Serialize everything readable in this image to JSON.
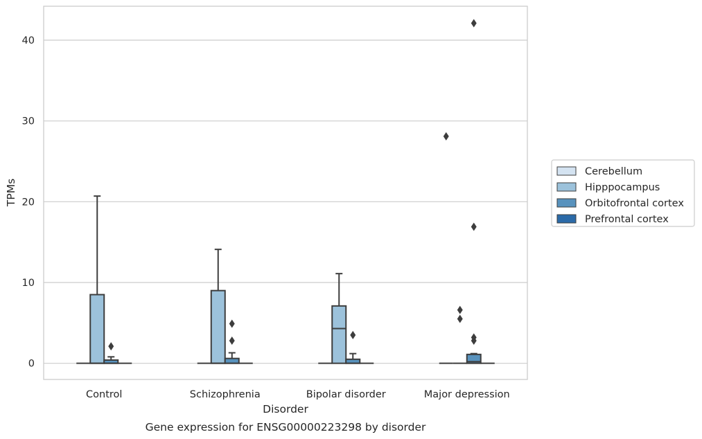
{
  "chart_data": {
    "type": "box",
    "title": "Gene expression for ENSG00000223298 by disorder",
    "xlabel": "Disorder",
    "ylabel": "TPMs",
    "ylim": [
      -2,
      44.2
    ],
    "yticks": [
      0,
      10,
      20,
      30,
      40
    ],
    "grid": "horizontal",
    "legend_position": "right",
    "categories": [
      "Control",
      "Schizophrenia",
      "Bipolar disorder",
      "Major depression"
    ],
    "series": [
      {
        "name": "Cerebellum",
        "color": "#d4e3f1",
        "boxes": [
          {
            "whislo": 0,
            "q1": 0,
            "med": 0,
            "q3": 0,
            "whishi": 0,
            "fliers": []
          },
          {
            "whislo": 0,
            "q1": 0,
            "med": 0,
            "q3": 0,
            "whishi": 0,
            "fliers": []
          },
          {
            "whislo": 0,
            "q1": 0,
            "med": 0,
            "q3": 0,
            "whishi": 0,
            "fliers": []
          },
          {
            "whislo": 0,
            "q1": 0,
            "med": 0,
            "q3": 0,
            "whishi": 0,
            "fliers": [
              28.1
            ]
          }
        ]
      },
      {
        "name": "Hipppocampus",
        "color": "#9cc2db",
        "boxes": [
          {
            "whislo": 0,
            "q1": 0,
            "med": 0,
            "q3": 8.5,
            "whishi": 20.7,
            "fliers": []
          },
          {
            "whislo": 0,
            "q1": 0,
            "med": 0,
            "q3": 9.0,
            "whishi": 14.1,
            "fliers": []
          },
          {
            "whislo": 0,
            "q1": 0,
            "med": 4.3,
            "q3": 7.1,
            "whishi": 11.1,
            "fliers": []
          },
          {
            "whislo": 0,
            "q1": 0,
            "med": 0,
            "q3": 0,
            "whishi": 0,
            "fliers": [
              6.6,
              5.5
            ]
          }
        ]
      },
      {
        "name": "Orbitofrontal cortex",
        "color": "#5892bd",
        "boxes": [
          {
            "whislo": 0,
            "q1": 0,
            "med": 0,
            "q3": 0.4,
            "whishi": 0.8,
            "fliers": [
              2.1
            ]
          },
          {
            "whislo": 0,
            "q1": 0,
            "med": 0,
            "q3": 0.6,
            "whishi": 1.3,
            "fliers": [
              4.9,
              2.8
            ]
          },
          {
            "whislo": 0,
            "q1": 0,
            "med": 0,
            "q3": 0.5,
            "whishi": 1.2,
            "fliers": [
              3.5
            ]
          },
          {
            "whislo": 0,
            "q1": 0,
            "med": 0.2,
            "q3": 1.1,
            "whishi": 1.2,
            "fliers": [
              42.1,
              16.9,
              3.2,
              2.8
            ]
          }
        ]
      },
      {
        "name": "Prefrontal cortex",
        "color": "#2b6aa8",
        "boxes": [
          {
            "whislo": 0,
            "q1": 0,
            "med": 0,
            "q3": 0,
            "whishi": 0,
            "fliers": []
          },
          {
            "whislo": 0,
            "q1": 0,
            "med": 0,
            "q3": 0,
            "whishi": 0,
            "fliers": []
          },
          {
            "whislo": 0,
            "q1": 0,
            "med": 0,
            "q3": 0,
            "whishi": 0,
            "fliers": []
          },
          {
            "whislo": 0,
            "q1": 0,
            "med": 0,
            "q3": 0,
            "whishi": 0,
            "fliers": []
          }
        ]
      }
    ]
  }
}
